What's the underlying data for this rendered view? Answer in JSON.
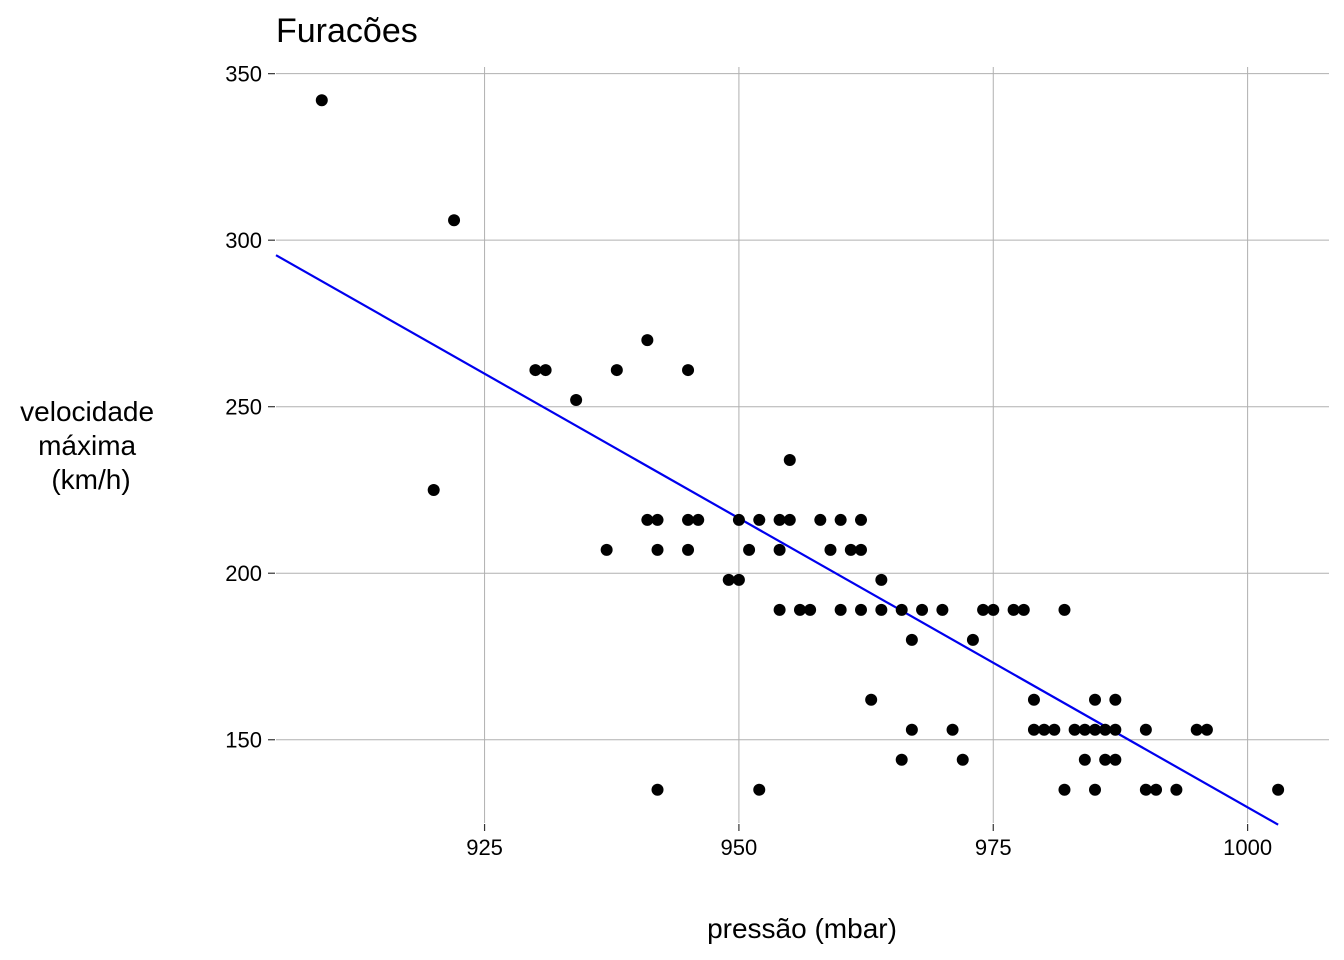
{
  "chart_data": {
    "type": "scatter",
    "title": "Furacões",
    "xlabel": "pressão (mbar)",
    "ylabel": [
      "velocidade",
      "máxima",
      "(km/h)"
    ],
    "xlim": [
      904.5,
      1008
    ],
    "ylim": [
      125,
      352
    ],
    "xticks": [
      925,
      950,
      975,
      1000
    ],
    "yticks": [
      150,
      200,
      250,
      300,
      350
    ],
    "grid": true,
    "colors": {
      "points": "#000000",
      "trend": "#0000ee",
      "grid": "#b0b0b0"
    },
    "trend_line": {
      "x": [
        904.5,
        1003
      ],
      "y": [
        295.5,
        124.5
      ]
    },
    "points": {
      "x": [
        909,
        922,
        920,
        930,
        931,
        934,
        938,
        941,
        945,
        937,
        941,
        942,
        942,
        945,
        945,
        946,
        949,
        950,
        950,
        951,
        952,
        952,
        942,
        954,
        954,
        954,
        955,
        955,
        956,
        957,
        958,
        959,
        960,
        960,
        961,
        962,
        962,
        962,
        963,
        964,
        964,
        966,
        966,
        967,
        967,
        968,
        970,
        971,
        972,
        973,
        974,
        975,
        977,
        978,
        979,
        979,
        980,
        981,
        982,
        982,
        983,
        984,
        984,
        985,
        985,
        985,
        986,
        986,
        987,
        987,
        987,
        990,
        990,
        991,
        993,
        995,
        996,
        1003
      ],
      "y": [
        342,
        306,
        225,
        261,
        261,
        252,
        261,
        270,
        261,
        207,
        216,
        216,
        207,
        216,
        207,
        216,
        198,
        198,
        216,
        207,
        216,
        135,
        135,
        216,
        207,
        189,
        234,
        216,
        189,
        189,
        216,
        207,
        216,
        189,
        207,
        216,
        207,
        189,
        162,
        198,
        189,
        144,
        189,
        180,
        153,
        189,
        189,
        153,
        144,
        180,
        189,
        189,
        189,
        189,
        162,
        153,
        153,
        153,
        189,
        135,
        153,
        153,
        144,
        162,
        153,
        135,
        153,
        144,
        162,
        153,
        144,
        153,
        135,
        135,
        135,
        153,
        153,
        135
      ]
    }
  }
}
